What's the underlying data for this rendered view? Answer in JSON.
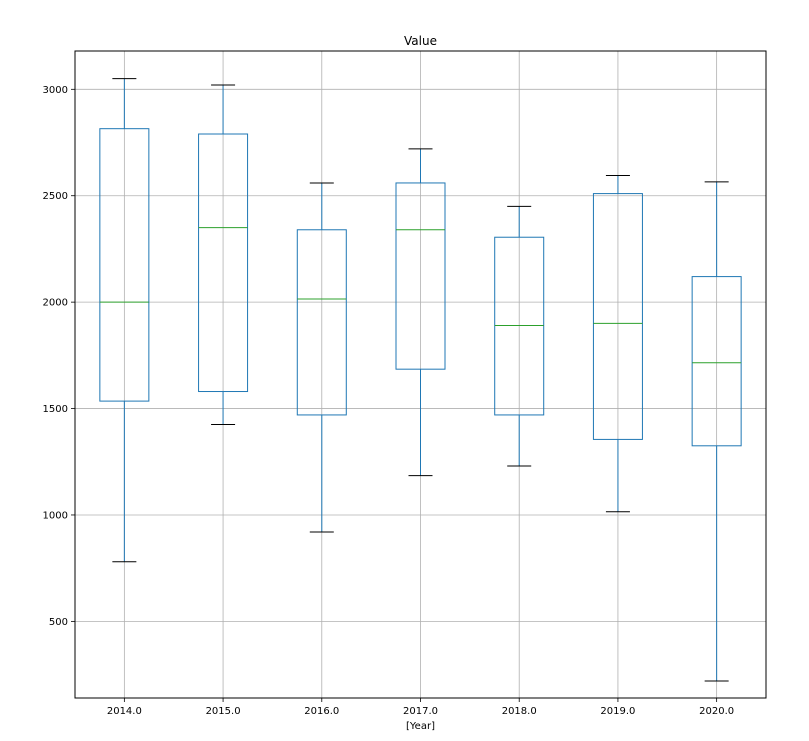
{
  "chart_data": {
    "type": "box",
    "title": "Value",
    "xlabel": "[Year]",
    "ylabel": "",
    "ylim": [
      140,
      3180
    ],
    "grid": true,
    "categories": [
      "2014.0",
      "2015.0",
      "2016.0",
      "2017.0",
      "2018.0",
      "2019.0",
      "2020.0"
    ],
    "y_ticks": [
      500,
      1000,
      1500,
      2000,
      2500,
      3000
    ],
    "y_tick_labels": [
      "500",
      "1000",
      "1500",
      "2000",
      "2500",
      "3000"
    ],
    "boxes": [
      {
        "category": "2014.0",
        "whisker_low": 780,
        "q1": 1535,
        "median": 2000,
        "q3": 2815,
        "whisker_high": 3050
      },
      {
        "category": "2015.0",
        "whisker_low": 1425,
        "q1": 1580,
        "median": 2350,
        "q3": 2790,
        "whisker_high": 3020
      },
      {
        "category": "2016.0",
        "whisker_low": 920,
        "q1": 1470,
        "median": 2015,
        "q3": 2340,
        "whisker_high": 2560
      },
      {
        "category": "2017.0",
        "whisker_low": 1185,
        "q1": 1685,
        "median": 2340,
        "q3": 2560,
        "whisker_high": 2720
      },
      {
        "category": "2018.0",
        "whisker_low": 1230,
        "q1": 1470,
        "median": 1890,
        "q3": 2305,
        "whisker_high": 2450
      },
      {
        "category": "2019.0",
        "whisker_low": 1015,
        "q1": 1355,
        "median": 1900,
        "q3": 2510,
        "whisker_high": 2595
      },
      {
        "category": "2020.0",
        "whisker_low": 220,
        "q1": 1325,
        "median": 1715,
        "q3": 2120,
        "whisker_high": 2565
      }
    ],
    "colors": {
      "box": "#1f77b4",
      "median": "#2ca02c",
      "cap": "#000000",
      "grid": "#b0b0b0",
      "frame": "#000000"
    }
  }
}
